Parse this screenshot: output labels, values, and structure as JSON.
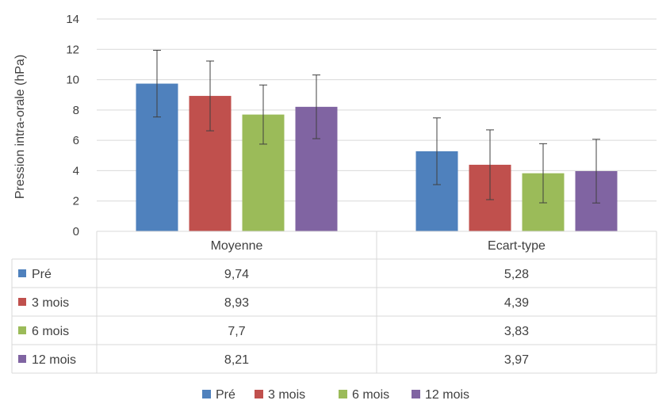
{
  "chart_data": {
    "type": "bar",
    "title": "",
    "xlabel": "",
    "ylabel": "Pression intra-orale (hPa)",
    "ylim": [
      0,
      14
    ],
    "yticks": [
      0,
      2,
      4,
      6,
      8,
      10,
      12,
      14
    ],
    "grid": true,
    "legend_position": "bottom",
    "data_table": true,
    "categories": [
      "Moyenne",
      "Ecart-type"
    ],
    "series": [
      {
        "name": "Pré",
        "color": "#4f81bd",
        "values": [
          9.74,
          5.28
        ],
        "value_labels": [
          "9,74",
          "5,28"
        ],
        "error": [
          2.2,
          2.2
        ]
      },
      {
        "name": "3 mois",
        "color": "#c0504d",
        "values": [
          8.93,
          4.39
        ],
        "value_labels": [
          "8,93",
          "4,39"
        ],
        "error": [
          2.3,
          2.3
        ]
      },
      {
        "name": "6 mois",
        "color": "#9bbb59",
        "values": [
          7.7,
          3.83
        ],
        "value_labels": [
          "7,7",
          "3,83"
        ],
        "error": [
          1.95,
          1.95
        ]
      },
      {
        "name": "12 mois",
        "color": "#8064a2",
        "values": [
          8.21,
          3.97
        ],
        "value_labels": [
          "8,21",
          "3,97"
        ],
        "error": [
          2.1,
          2.1
        ]
      }
    ]
  }
}
